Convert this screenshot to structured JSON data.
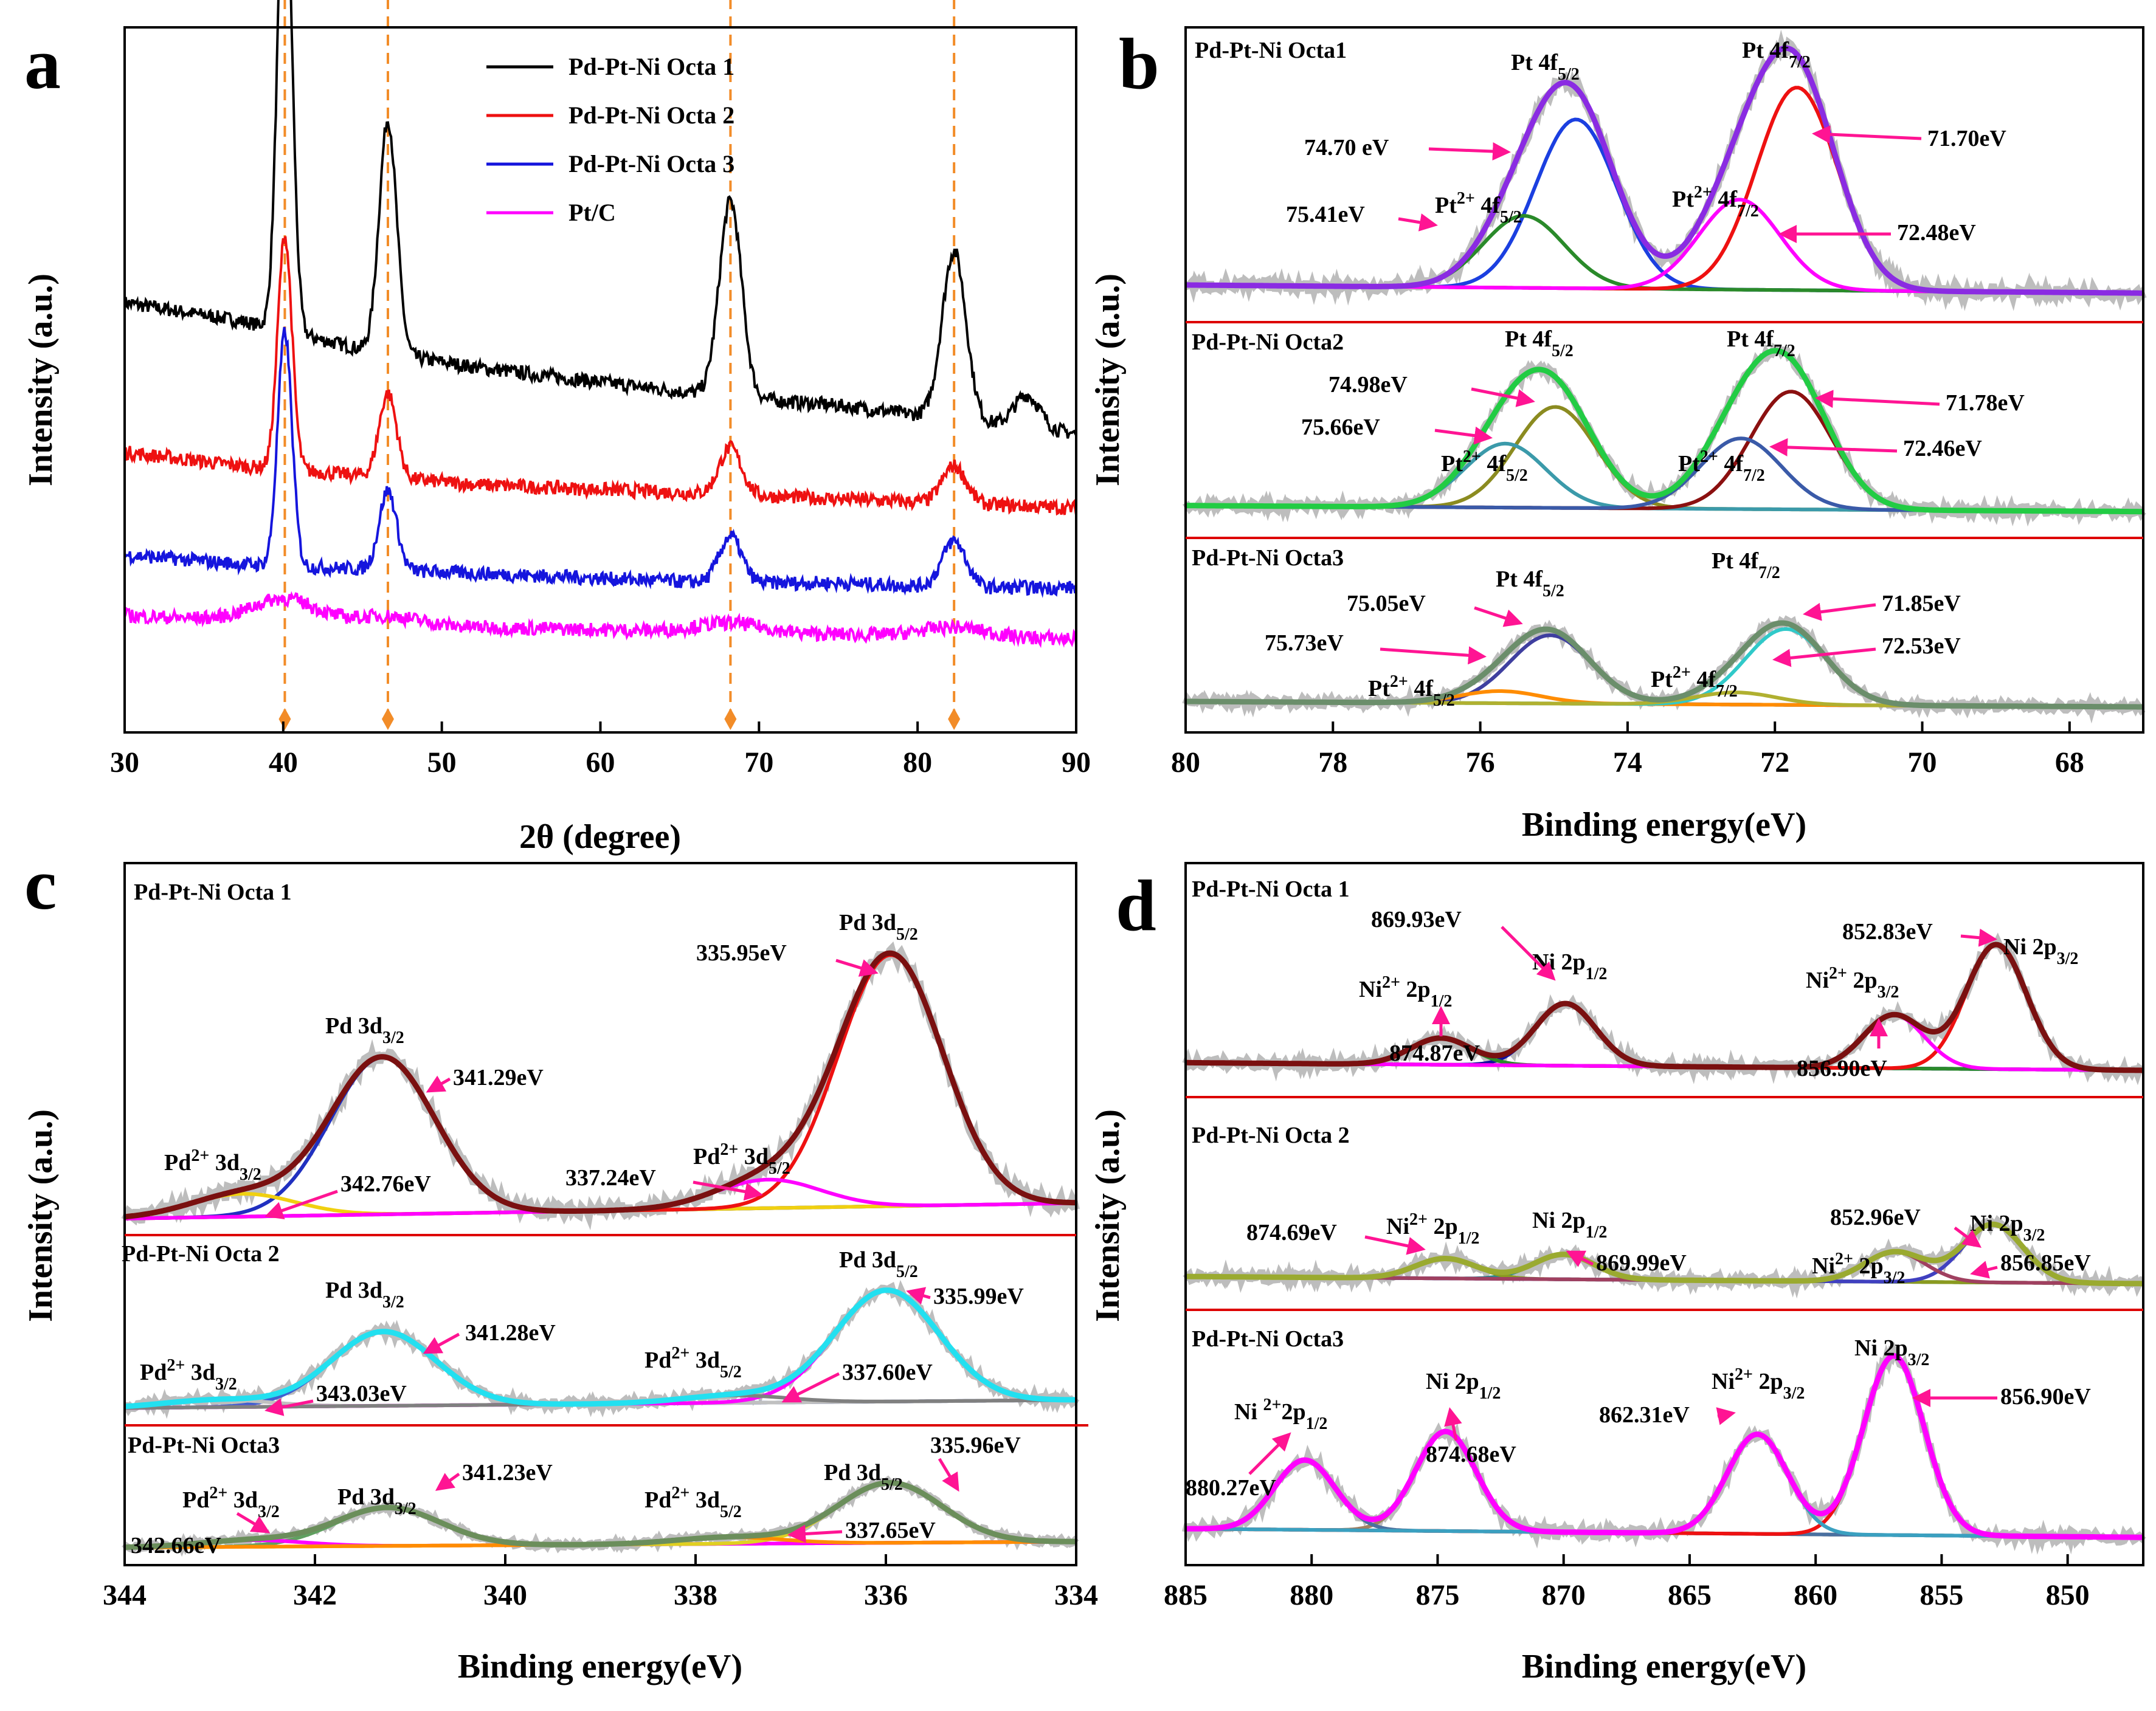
{
  "chart_data": [
    {
      "panel": "a",
      "type": "line",
      "xlabel": "2θ (degree)",
      "ylabel": "Intensity (a.u.)",
      "xlim": [
        30,
        90
      ],
      "xticks": [
        30,
        40,
        50,
        60,
        70,
        80,
        90
      ],
      "reference_lines": [
        40.1,
        46.6,
        68.2,
        82.3
      ],
      "series": [
        {
          "name": "Pd-Pt-Ni Octa 1",
          "color": "#000000",
          "offset": 0.56,
          "base": [
            0.92,
            0.88,
            0.82,
            0.78,
            0.75,
            0.72,
            0.7,
            0.67,
            0.64
          ],
          "peaks": [
            [
              40.1,
              1.04,
              0.45
            ],
            [
              46.6,
              0.5,
              0.55
            ],
            [
              68.2,
              0.42,
              0.7
            ],
            [
              82.3,
              0.36,
              0.75
            ],
            [
              86.9,
              0.07,
              0.8
            ]
          ]
        },
        {
          "name": "Pd-Pt-Ni Octa 2",
          "color": "#ee1111",
          "offset": 0.36,
          "base": [
            0.6,
            0.57,
            0.55,
            0.53,
            0.52,
            0.51,
            0.5,
            0.49,
            0.48
          ],
          "peaks": [
            [
              40.1,
              0.5,
              0.45
            ],
            [
              46.6,
              0.18,
              0.55
            ],
            [
              68.2,
              0.1,
              0.7
            ],
            [
              82.3,
              0.08,
              0.75
            ]
          ]
        },
        {
          "name": "Pd-Pt-Ni Octa 3",
          "color": "#1515dd",
          "offset": 0.2,
          "base": [
            0.38,
            0.36,
            0.35,
            0.34,
            0.33,
            0.32,
            0.32,
            0.31,
            0.31
          ],
          "peaks": [
            [
              40.1,
              0.5,
              0.45
            ],
            [
              46.6,
              0.17,
              0.55
            ],
            [
              68.2,
              0.1,
              0.7
            ],
            [
              82.3,
              0.1,
              0.75
            ]
          ]
        },
        {
          "name": "Pt/C",
          "color": "#ff00ff",
          "offset": 0.12,
          "base": [
            0.25,
            0.24,
            0.23,
            0.225,
            0.22,
            0.215,
            0.21,
            0.205,
            0.2
          ],
          "peaks": [
            [
              40.1,
              0.05,
              2.0
            ],
            [
              46.6,
              0.02,
              2.0
            ],
            [
              68.2,
              0.02,
              2.0
            ],
            [
              82.3,
              0.02,
              2.0
            ]
          ]
        }
      ]
    },
    {
      "panel": "b",
      "type": "line",
      "xlabel": "Binding energy(eV)",
      "ylabel": "Intensity (a.u.)",
      "xlim": [
        80,
        67
      ],
      "xticks": [
        80,
        78,
        76,
        74,
        72,
        70,
        68
      ],
      "subplots": [
        {
          "title": "Pd-Pt-Ni Octa1",
          "annotations": [
            "74.70 eV",
            "75.41eV",
            "71.70eV",
            "72.48eV"
          ],
          "peak_labels": [
            "Pt 4f5/2",
            "Pt 4f7/2",
            "Pt2+ 4f5/2",
            "Pt2+ 4f7/2"
          ],
          "fitted_peaks": [
            {
              "center": 74.7,
              "height": 0.75
            },
            {
              "center": 75.41,
              "height": 0.32
            },
            {
              "center": 71.7,
              "height": 0.9
            },
            {
              "center": 72.48,
              "height": 0.4
            }
          ]
        },
        {
          "title": "Pd-Pt-Ni Octa2",
          "annotations": [
            "74.98eV",
            "75.66eV",
            "71.78eV",
            "72.46eV"
          ],
          "peak_labels": [
            "Pt 4f5/2",
            "Pt 4f7/2",
            "Pt2+ 4f5/2",
            "Pt2+ 4f7/2"
          ],
          "fitted_peaks": [
            {
              "center": 74.98,
              "height": 0.6
            },
            {
              "center": 75.66,
              "height": 0.38
            },
            {
              "center": 71.78,
              "height": 0.7
            },
            {
              "center": 72.46,
              "height": 0.42
            }
          ]
        },
        {
          "title": "Pd-Pt-Ni Octa3",
          "annotations": [
            "75.05eV",
            "75.73eV",
            "71.85eV",
            "72.53eV"
          ],
          "peak_labels": [
            "Pt 4f5/2",
            "Pt 4f7/2",
            "Pt2+ 4f5/2",
            "Pt2+ 4f7/2"
          ],
          "fitted_peaks": [
            {
              "center": 75.05,
              "height": 0.45
            },
            {
              "center": 75.73,
              "height": 0.08
            },
            {
              "center": 71.85,
              "height": 0.5
            },
            {
              "center": 72.53,
              "height": 0.08
            }
          ]
        }
      ]
    },
    {
      "panel": "c",
      "type": "line",
      "xlabel": "Binding energy(eV)",
      "ylabel": "Intensity (a.u.)",
      "xlim": [
        344,
        334
      ],
      "xticks": [
        344,
        342,
        340,
        338,
        336,
        334
      ],
      "subplots": [
        {
          "title": "Pd-Pt-Ni Octa 1",
          "annotations": [
            "341.29eV",
            "342.76eV",
            "335.95eV",
            "337.24eV"
          ],
          "peak_labels": [
            "Pd 3d3/2",
            "Pd 3d5/2",
            "Pd2+ 3d3/2",
            "Pd2+ 3d5/2"
          ],
          "fitted_peaks": [
            {
              "center": 341.29,
              "height": 0.55
            },
            {
              "center": 342.76,
              "height": 0.08
            },
            {
              "center": 335.95,
              "height": 0.88
            },
            {
              "center": 337.24,
              "height": 0.1
            }
          ]
        },
        {
          "title": "Pd-Pt-Ni Octa 2",
          "annotations": [
            "341.28eV",
            "343.03eV",
            "335.99eV",
            "337.60eV"
          ],
          "peak_labels": [
            "Pd 3d3/2",
            "Pd 3d5/2",
            "Pd2+ 3d3/2",
            "Pd2+ 3d5/2"
          ],
          "fitted_peaks": [
            {
              "center": 341.28,
              "height": 0.5
            },
            {
              "center": 343.03,
              "height": 0.05
            },
            {
              "center": 335.99,
              "height": 0.75
            },
            {
              "center": 337.6,
              "height": 0.05
            }
          ]
        },
        {
          "title": "Pd-Pt-Ni Octa3",
          "annotations": [
            "341.23eV",
            "342.66eV",
            "335.96eV",
            "337.65eV"
          ],
          "peak_labels": [
            "Pd 3d3/2",
            "Pd 3d5/2",
            "Pd2+ 3d3/2",
            "Pd2+ 3d5/2"
          ],
          "fitted_peaks": [
            {
              "center": 341.23,
              "height": 0.35
            },
            {
              "center": 342.66,
              "height": 0.06
            },
            {
              "center": 335.96,
              "height": 0.55
            },
            {
              "center": 337.65,
              "height": 0.06
            }
          ]
        }
      ]
    },
    {
      "panel": "d",
      "type": "line",
      "xlabel": "Binding energy(eV)",
      "ylabel": "Intensity (a.u.)",
      "xlim": [
        885,
        847
      ],
      "xticks": [
        885,
        880,
        875,
        870,
        865,
        860,
        855,
        850
      ],
      "subplots": [
        {
          "title": "Pd-Pt-Ni Octa 1",
          "annotations": [
            "869.93eV",
            "874.87eV",
            "852.83eV",
            "856.90eV"
          ],
          "peak_labels": [
            "Ni 2p1/2",
            "Ni 2p3/2",
            "Ni2+ 2p1/2",
            "Ni2+ 2p3/2"
          ],
          "fitted_peaks": [
            {
              "center": 869.93,
              "height": 0.35
            },
            {
              "center": 874.87,
              "height": 0.15
            },
            {
              "center": 852.83,
              "height": 0.7
            },
            {
              "center": 856.9,
              "height": 0.3
            }
          ]
        },
        {
          "title": "Pd-Pt-Ni Octa 2",
          "annotations": [
            "874.69eV",
            "869.99eV",
            "852.96eV",
            "856.85eV"
          ],
          "peak_labels": [
            "Ni 2p1/2",
            "Ni 2p3/2",
            "Ni2+ 2p1/2",
            "Ni2+ 2p3/2"
          ],
          "fitted_peaks": [
            {
              "center": 869.99,
              "height": 0.15
            },
            {
              "center": 874.69,
              "height": 0.12
            },
            {
              "center": 852.96,
              "height": 0.35
            },
            {
              "center": 856.85,
              "height": 0.18
            }
          ]
        },
        {
          "title": "Pd-Pt-Ni Octa3",
          "annotations": [
            "874.68eV",
            "880.27eV",
            "856.90eV",
            "862.31eV"
          ],
          "peak_labels": [
            "Ni 2p1/2",
            "Ni 2p3/2",
            "Ni 2+2p1/2",
            "Ni2+ 2p3/2"
          ],
          "fitted_peaks": [
            {
              "center": 874.68,
              "height": 0.5
            },
            {
              "center": 880.27,
              "height": 0.35
            },
            {
              "center": 856.9,
              "height": 0.9
            },
            {
              "center": 862.31,
              "height": 0.5
            }
          ]
        }
      ]
    }
  ],
  "panel_letters": [
    "a",
    "b",
    "c",
    "d"
  ]
}
